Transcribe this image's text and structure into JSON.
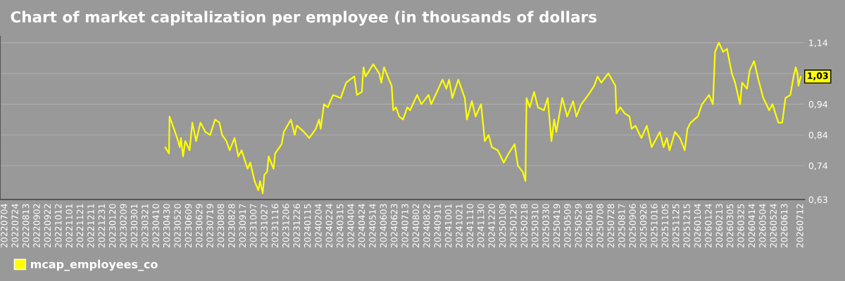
{
  "chart_data": {
    "type": "line",
    "title": "Chart of market capitalization per employee (in thousands of dollars",
    "x": [
      "2023-04-26",
      "2023-05-03",
      "2023-05-04",
      "2023-05-10",
      "2023-05-14",
      "2023-05-18",
      "2023-05-23",
      "2023-05-25",
      "2023-05-29",
      "2023-06-02",
      "2023-06-10",
      "2023-06-15",
      "2023-06-22",
      "2023-06-30",
      "2023-07-09",
      "2023-07-18",
      "2023-07-27",
      "2023-08-04",
      "2023-08-09",
      "2023-08-17",
      "2023-08-23",
      "2023-09-01",
      "2023-09-08",
      "2023-09-14",
      "2023-09-25",
      "2023-09-30",
      "2023-10-08",
      "2023-10-15",
      "2023-10-18",
      "2023-10-23",
      "2023-10-26",
      "2023-10-31",
      "2023-11-03",
      "2023-11-12",
      "2023-11-15",
      "2023-11-27",
      "2023-12-01",
      "2023-12-14",
      "2023-12-21",
      "2023-12-25",
      "2024-01-07",
      "2024-01-17",
      "2024-01-29",
      "2024-02-04",
      "2024-02-07",
      "2024-02-13",
      "2024-02-20",
      "2024-03-01",
      "2024-03-15",
      "2024-03-25",
      "2024-04-01",
      "2024-04-09",
      "2024-04-14",
      "2024-04-23",
      "2024-04-26",
      "2024-04-30",
      "2024-05-14",
      "2024-05-25",
      "2024-05-29",
      "2024-06-03",
      "2024-06-12",
      "2024-06-17",
      "2024-06-20",
      "2024-06-25",
      "2024-07-01",
      "2024-07-08",
      "2024-07-16",
      "2024-07-21",
      "2024-08-03",
      "2024-08-11",
      "2024-08-24",
      "2024-08-29",
      "2024-09-06",
      "2024-09-19",
      "2024-09-26",
      "2024-10-01",
      "2024-10-07",
      "2024-10-18",
      "2024-10-30",
      "2024-11-03",
      "2024-11-12",
      "2024-11-19",
      "2024-11-29",
      "2024-12-06",
      "2024-12-13",
      "2024-12-19",
      "2024-12-30",
      "2025-01-10",
      "2025-01-19",
      "2025-01-30",
      "2025-02-05",
      "2025-02-14",
      "2025-02-19",
      "2025-02-21",
      "2025-02-27",
      "2025-03-07",
      "2025-03-14",
      "2025-03-25",
      "2025-04-01",
      "2025-04-08",
      "2025-04-13",
      "2025-04-17",
      "2025-04-28",
      "2025-05-07",
      "2025-05-18",
      "2025-05-24",
      "2025-06-02",
      "2025-06-15",
      "2025-06-26",
      "2025-07-02",
      "2025-07-09",
      "2025-07-22",
      "2025-08-04",
      "2025-08-06",
      "2025-08-13",
      "2025-08-21",
      "2025-08-30",
      "2025-09-03",
      "2025-09-10",
      "2025-09-21",
      "2025-10-01",
      "2025-10-10",
      "2025-10-25",
      "2025-11-01",
      "2025-11-07",
      "2025-11-12",
      "2025-11-22",
      "2025-12-01",
      "2025-12-10",
      "2025-12-15",
      "2025-12-21",
      "2026-01-03",
      "2026-01-11",
      "2026-01-24",
      "2026-01-31",
      "2026-02-04",
      "2026-02-11",
      "2026-02-19",
      "2026-02-26",
      "2026-03-07",
      "2026-03-13",
      "2026-03-22",
      "2026-03-26",
      "2026-04-04",
      "2026-04-09",
      "2026-04-17",
      "2026-04-25",
      "2026-05-04",
      "2026-05-15",
      "2026-05-21",
      "2026-06-01",
      "2026-06-08",
      "2026-06-14",
      "2026-06-23",
      "2026-06-29",
      "2026-07-03",
      "2026-07-06",
      "2026-07-08",
      "2026-07-12"
    ],
    "series": [
      {
        "name": "mcap_employees_co",
        "color": "#ffff00",
        "values": [
          0.8,
          0.78,
          0.9,
          0.87,
          0.85,
          0.83,
          0.8,
          0.83,
          0.77,
          0.82,
          0.79,
          0.88,
          0.82,
          0.88,
          0.85,
          0.84,
          0.89,
          0.88,
          0.84,
          0.82,
          0.79,
          0.83,
          0.77,
          0.79,
          0.73,
          0.75,
          0.69,
          0.66,
          0.69,
          0.65,
          0.71,
          0.72,
          0.77,
          0.73,
          0.78,
          0.81,
          0.85,
          0.89,
          0.84,
          0.87,
          0.85,
          0.83,
          0.86,
          0.89,
          0.86,
          0.94,
          0.93,
          0.97,
          0.96,
          1.01,
          1.02,
          1.03,
          0.97,
          0.98,
          1.06,
          1.03,
          1.07,
          1.04,
          1.01,
          1.06,
          1.02,
          1.0,
          0.92,
          0.93,
          0.9,
          0.89,
          0.93,
          0.92,
          0.97,
          0.94,
          0.97,
          0.94,
          0.97,
          1.02,
          0.99,
          1.02,
          0.96,
          1.02,
          0.96,
          0.89,
          0.95,
          0.9,
          0.94,
          0.82,
          0.84,
          0.8,
          0.79,
          0.75,
          0.78,
          0.81,
          0.74,
          0.72,
          0.69,
          0.96,
          0.93,
          0.98,
          0.93,
          0.92,
          0.96,
          0.82,
          0.89,
          0.85,
          0.96,
          0.9,
          0.95,
          0.9,
          0.94,
          0.97,
          1.0,
          1.03,
          1.01,
          1.04,
          1.0,
          0.91,
          0.93,
          0.91,
          0.9,
          0.86,
          0.87,
          0.83,
          0.87,
          0.8,
          0.85,
          0.8,
          0.83,
          0.79,
          0.85,
          0.83,
          0.79,
          0.86,
          0.88,
          0.9,
          0.94,
          0.97,
          0.94,
          1.11,
          1.14,
          1.11,
          1.12,
          1.04,
          1.01,
          0.94,
          1.01,
          0.99,
          1.05,
          1.08,
          1.02,
          0.96,
          0.92,
          0.94,
          0.88,
          0.88,
          0.96,
          0.97,
          1.03,
          1.06,
          1.04,
          1.0,
          1.03
        ]
      }
    ],
    "xlim": [
      "2022-06-25",
      "2026-07-19"
    ],
    "xticks": [
      {
        "value": "2022-07-04",
        "label": "20220704"
      },
      {
        "value": "2022-07-24",
        "label": "20220724"
      },
      {
        "value": "2022-08-13",
        "label": "20220813"
      },
      {
        "value": "2022-09-02",
        "label": "20220902"
      },
      {
        "value": "2022-09-22",
        "label": "20220922"
      },
      {
        "value": "2022-10-12",
        "label": "20221012"
      },
      {
        "value": "2022-11-01",
        "label": "20221101"
      },
      {
        "value": "2022-11-21",
        "label": "20221121"
      },
      {
        "value": "2022-12-11",
        "label": "20221211"
      },
      {
        "value": "2022-12-31",
        "label": "20221231"
      },
      {
        "value": "2023-01-20",
        "label": "20230120"
      },
      {
        "value": "2023-02-09",
        "label": "20230209"
      },
      {
        "value": "2023-03-01",
        "label": "20230301"
      },
      {
        "value": "2023-03-21",
        "label": "20230321"
      },
      {
        "value": "2023-04-10",
        "label": "20230410"
      },
      {
        "value": "2023-04-30",
        "label": "20230430"
      },
      {
        "value": "2023-05-20",
        "label": "20230520"
      },
      {
        "value": "2023-06-09",
        "label": "20230609"
      },
      {
        "value": "2023-06-29",
        "label": "20230629"
      },
      {
        "value": "2023-07-19",
        "label": "20230719"
      },
      {
        "value": "2023-08-08",
        "label": "20230808"
      },
      {
        "value": "2023-08-28",
        "label": "20230828"
      },
      {
        "value": "2023-09-17",
        "label": "20230917"
      },
      {
        "value": "2023-10-07",
        "label": "20231007"
      },
      {
        "value": "2023-10-27",
        "label": "20231027"
      },
      {
        "value": "2023-11-16",
        "label": "20231116"
      },
      {
        "value": "2023-12-06",
        "label": "20231206"
      },
      {
        "value": "2023-12-26",
        "label": "20231226"
      },
      {
        "value": "2024-01-15",
        "label": "20240115"
      },
      {
        "value": "2024-02-04",
        "label": "20240204"
      },
      {
        "value": "2024-02-24",
        "label": "20240224"
      },
      {
        "value": "2024-03-15",
        "label": "20240315"
      },
      {
        "value": "2024-04-04",
        "label": "20240404"
      },
      {
        "value": "2024-04-24",
        "label": "20240424"
      },
      {
        "value": "2024-05-14",
        "label": "20240514"
      },
      {
        "value": "2024-06-03",
        "label": "20240603"
      },
      {
        "value": "2024-06-23",
        "label": "20240623"
      },
      {
        "value": "2024-07-13",
        "label": "20240713"
      },
      {
        "value": "2024-08-02",
        "label": "20240802"
      },
      {
        "value": "2024-08-22",
        "label": "20240822"
      },
      {
        "value": "2024-09-11",
        "label": "20240911"
      },
      {
        "value": "2024-10-01",
        "label": "20241001"
      },
      {
        "value": "2024-10-21",
        "label": "20241021"
      },
      {
        "value": "2024-11-10",
        "label": "20241110"
      },
      {
        "value": "2024-11-30",
        "label": "20241130"
      },
      {
        "value": "2024-12-20",
        "label": "20241220"
      },
      {
        "value": "2025-01-09",
        "label": "20250109"
      },
      {
        "value": "2025-01-29",
        "label": "20250129"
      },
      {
        "value": "2025-02-18",
        "label": "20250218"
      },
      {
        "value": "2025-03-10",
        "label": "20250310"
      },
      {
        "value": "2025-03-30",
        "label": "20250330"
      },
      {
        "value": "2025-04-19",
        "label": "20250419"
      },
      {
        "value": "2025-05-09",
        "label": "20250509"
      },
      {
        "value": "2025-05-29",
        "label": "20250529"
      },
      {
        "value": "2025-06-18",
        "label": "20250618"
      },
      {
        "value": "2025-07-08",
        "label": "20250708"
      },
      {
        "value": "2025-07-28",
        "label": "20250728"
      },
      {
        "value": "2025-08-17",
        "label": "20250817"
      },
      {
        "value": "2025-09-06",
        "label": "20250906"
      },
      {
        "value": "2025-09-26",
        "label": "20250926"
      },
      {
        "value": "2025-10-16",
        "label": "20251016"
      },
      {
        "value": "2025-11-05",
        "label": "20251105"
      },
      {
        "value": "2025-11-25",
        "label": "20251125"
      },
      {
        "value": "2025-12-15",
        "label": "20251215"
      },
      {
        "value": "2026-01-04",
        "label": "20260104"
      },
      {
        "value": "2026-01-24",
        "label": "20260124"
      },
      {
        "value": "2026-02-13",
        "label": "20260213"
      },
      {
        "value": "2026-03-05",
        "label": "20260305"
      },
      {
        "value": "2026-03-25",
        "label": "20260325"
      },
      {
        "value": "2026-04-14",
        "label": "20260414"
      },
      {
        "value": "2026-05-04",
        "label": "20260504"
      },
      {
        "value": "2026-05-24",
        "label": "20260524"
      },
      {
        "value": "2026-06-13",
        "label": "20260613"
      },
      {
        "value": "2026-07-12",
        "label": "20260712"
      }
    ],
    "ylim": [
      0.63,
      1.16
    ],
    "yticks": [
      {
        "value": 0.63,
        "label": "0,63"
      },
      {
        "value": 0.74,
        "label": "0,74"
      },
      {
        "value": 0.84,
        "label": "0,84"
      },
      {
        "value": 0.94,
        "label": "0,94"
      },
      {
        "value": 1.04,
        "label": null
      },
      {
        "value": 1.14,
        "label": "1,14"
      }
    ],
    "annotations": [
      {
        "text": "1,03",
        "x": "2026-07-12",
        "y": 1.03
      }
    ],
    "grid": "y",
    "legend": "bottom left",
    "marker": "none",
    "line_style": "solid"
  }
}
